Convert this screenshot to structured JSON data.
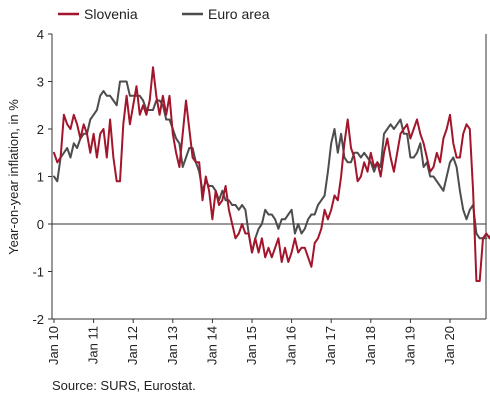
{
  "chart_data": {
    "type": "line",
    "title": "",
    "xlabel": "",
    "ylabel": "Year-on-year inflation, in %",
    "ylim": [
      -2,
      4
    ],
    "yticks": [
      "4",
      "3",
      "2",
      "1",
      "0",
      "-1",
      "-2"
    ],
    "xticks": [
      "Jan 10",
      "Jan 11",
      "Jan 12",
      "Jan 13",
      "Jan 14",
      "Jan 15",
      "Jan 16",
      "Jan 17",
      "Jan 18",
      "Jan 19",
      "Jan 20"
    ],
    "grid": false,
    "legend": "top-left",
    "source": "Source: SURS, Eurostat.",
    "series": [
      {
        "name": "Slovenia",
        "color": "#a3152b",
        "values": [
          1.5,
          1.3,
          1.4,
          2.3,
          2.1,
          2.0,
          2.3,
          2.1,
          1.8,
          2.1,
          1.9,
          1.5,
          1.9,
          1.4,
          1.9,
          2.0,
          1.4,
          2.2,
          1.4,
          0.9,
          0.9,
          2.1,
          2.7,
          2.1,
          2.5,
          2.9,
          2.3,
          2.5,
          2.3,
          2.6,
          3.3,
          2.7,
          2.3,
          2.7,
          2.3,
          2.7,
          1.9,
          1.5,
          1.2,
          1.9,
          2.6,
          2.0,
          1.4,
          1.3,
          1.3,
          0.5,
          1.0,
          0.7,
          0.1,
          0.7,
          0.4,
          0.5,
          0.8,
          0.3,
          0.0,
          -0.3,
          -0.2,
          0.0,
          -0.2,
          -0.2,
          -0.6,
          -0.3,
          -0.6,
          -0.3,
          -0.7,
          -0.5,
          -0.7,
          -0.5,
          -0.3,
          -0.8,
          -0.5,
          -0.8,
          -0.6,
          -0.3,
          -0.6,
          -0.5,
          -0.5,
          -0.7,
          -0.9,
          -0.4,
          -0.3,
          -0.1,
          0.3,
          0.1,
          0.3,
          0.6,
          0.5,
          1.0,
          1.7,
          2.2,
          1.6,
          1.4,
          0.9,
          1.0,
          1.3,
          1.1,
          1.5,
          1.2,
          1.3,
          1.0,
          1.5,
          1.8,
          1.4,
          1.1,
          1.5,
          1.9,
          2.0,
          2.1,
          1.8,
          2.0,
          2.2,
          1.9,
          1.7,
          1.4,
          1.1,
          1.2,
          1.5,
          1.3,
          1.8,
          2.0,
          2.3,
          1.7,
          1.4,
          1.4,
          1.9,
          2.1,
          2.0,
          0.7,
          -1.2,
          -1.2,
          -0.3,
          -0.2,
          -0.3,
          -0.1
        ]
      },
      {
        "name": "Euro area",
        "color": "#4d4d4d",
        "values": [
          1.0,
          0.9,
          1.4,
          1.5,
          1.6,
          1.4,
          1.7,
          1.6,
          1.8,
          1.9,
          1.9,
          2.2,
          2.3,
          2.4,
          2.7,
          2.8,
          2.7,
          2.7,
          2.6,
          2.5,
          3.0,
          3.0,
          3.0,
          2.7,
          2.7,
          2.7,
          2.7,
          2.6,
          2.4,
          2.4,
          2.4,
          2.6,
          2.6,
          2.5,
          2.2,
          2.2,
          2.0,
          1.8,
          1.7,
          1.2,
          1.4,
          1.6,
          1.6,
          1.3,
          1.1,
          0.7,
          0.9,
          0.8,
          0.8,
          0.7,
          0.5,
          0.7,
          0.5,
          0.5,
          0.4,
          0.4,
          0.3,
          0.4,
          0.3,
          -0.2,
          -0.6,
          -0.3,
          -0.1,
          0.0,
          0.3,
          0.2,
          0.2,
          0.1,
          -0.1,
          0.1,
          0.1,
          0.2,
          0.3,
          -0.2,
          0.0,
          -0.2,
          -0.1,
          0.1,
          0.2,
          0.2,
          0.4,
          0.5,
          0.6,
          1.1,
          1.7,
          2.0,
          1.5,
          1.9,
          1.4,
          1.3,
          1.3,
          1.5,
          1.5,
          1.4,
          1.5,
          1.4,
          1.3,
          1.1,
          1.3,
          1.2,
          1.9,
          2.0,
          2.1,
          2.0,
          2.1,
          2.2,
          1.9,
          1.9,
          1.4,
          1.4,
          1.5,
          1.7,
          1.2,
          1.3,
          1.0,
          1.0,
          0.9,
          0.8,
          0.7,
          1.0,
          1.3,
          1.4,
          1.2,
          0.7,
          0.3,
          0.1,
          0.3,
          0.4,
          -0.2,
          -0.3,
          -0.3,
          -0.3
        ]
      }
    ]
  }
}
